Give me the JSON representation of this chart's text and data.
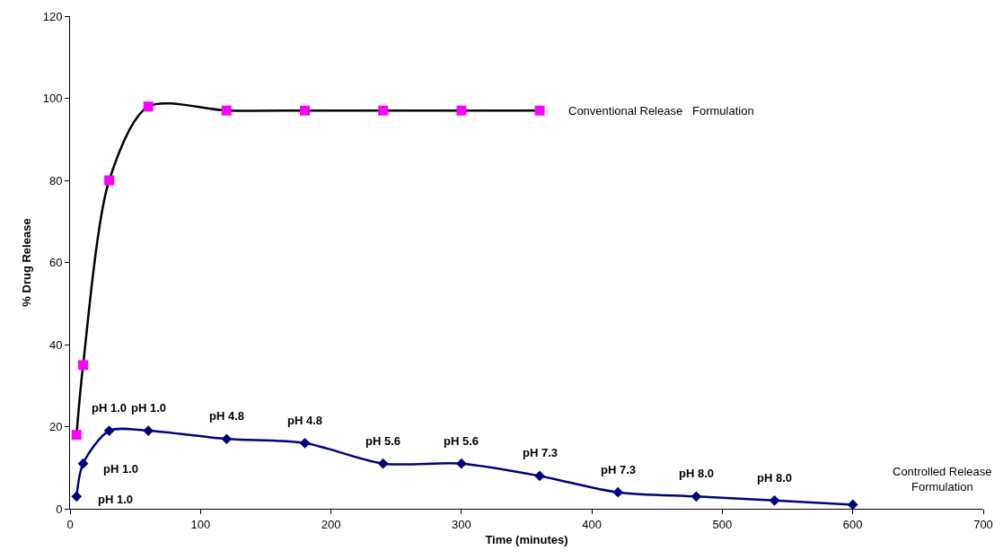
{
  "chart_data": {
    "type": "line",
    "xlabel": "Time (minutes)",
    "ylabel": "% Drug Release",
    "xlim": [
      0,
      700
    ],
    "xticks": [
      0,
      100,
      200,
      300,
      400,
      500,
      600,
      700
    ],
    "ylim": [
      0,
      120
    ],
    "yticks": [
      0,
      20,
      40,
      60,
      80,
      100,
      120
    ],
    "grid": false,
    "legend": false,
    "line_style": "solid",
    "series": [
      {
        "name": "Conventional Release   Formulation",
        "color": "#ff00ff",
        "marker": "square",
        "x": [
          5,
          10,
          30,
          60,
          120,
          180,
          240,
          300,
          360
        ],
        "values": [
          18,
          35,
          80,
          98,
          97,
          97,
          97,
          97,
          97
        ]
      },
      {
        "name": "Controlled Release Formulation",
        "color": "#000080",
        "marker": "diamond",
        "x": [
          5,
          10,
          30,
          60,
          120,
          180,
          240,
          300,
          360,
          420,
          480,
          540,
          600
        ],
        "values": [
          3,
          11,
          19,
          19,
          17,
          16,
          11,
          11,
          8,
          4,
          3,
          2,
          1
        ]
      }
    ],
    "annotations": [
      {
        "text": "pH 1.0",
        "x": 5,
        "y": 3
      },
      {
        "text": "pH 1.0",
        "x": 10,
        "y": 11
      },
      {
        "text": "pH 1.0",
        "x": 30,
        "y": 19
      },
      {
        "text": "pH 1.0",
        "x": 60,
        "y": 19
      },
      {
        "text": "pH 4.8",
        "x": 120,
        "y": 17
      },
      {
        "text": "pH 4.8",
        "x": 180,
        "y": 16
      },
      {
        "text": "pH 5.6",
        "x": 240,
        "y": 11
      },
      {
        "text": "pH 5.6",
        "x": 300,
        "y": 11
      },
      {
        "text": "pH 7.3",
        "x": 360,
        "y": 8
      },
      {
        "text": "pH 7.3",
        "x": 420,
        "y": 4
      },
      {
        "text": "pH 8.0",
        "x": 480,
        "y": 3
      },
      {
        "text": "pH 8.0",
        "x": 540,
        "y": 2
      }
    ]
  }
}
